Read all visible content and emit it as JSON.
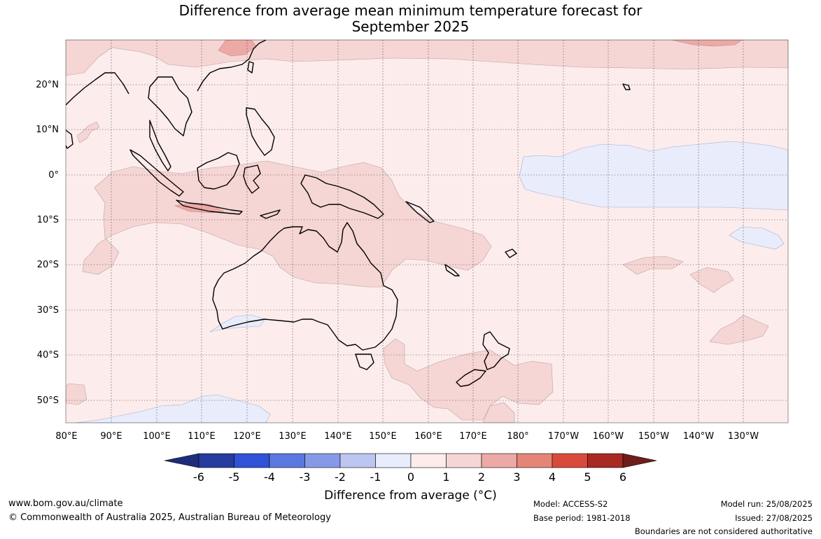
{
  "title": {
    "line1": "Difference from average mean minimum temperature forecast for",
    "line2": "September 2025"
  },
  "map": {
    "lat_labels": [
      "20°N",
      "10°N",
      "0°",
      "10°S",
      "20°S",
      "30°S",
      "40°S",
      "50°S"
    ],
    "lon_labels": [
      "80°E",
      "90°E",
      "100°E",
      "110°E",
      "120°E",
      "130°E",
      "140°E",
      "150°E",
      "160°E",
      "170°E",
      "180°",
      "170°W",
      "160°W",
      "150°W",
      "140°W",
      "130°W"
    ],
    "extent": {
      "lon_min": 80,
      "lon_max": 239,
      "lat_min": -55,
      "lat_max": 30
    },
    "grid": "dotted"
  },
  "colorbar": {
    "tick_labels": [
      "-6",
      "-5",
      "-4",
      "-3",
      "-2",
      "-1",
      "0",
      "1",
      "2",
      "3",
      "4",
      "5",
      "6"
    ],
    "colors": [
      "#263c9e",
      "#2f52d6",
      "#5b78e0",
      "#8699e6",
      "#bcc6f0",
      "#e8ecfb",
      "#fcecec",
      "#f6d5d5",
      "#eca9a5",
      "#e58577",
      "#da4a3c",
      "#a82a22"
    ],
    "under_color": "#1e2d7a",
    "over_color": "#6f1d1a",
    "title": "Difference from average (°C)"
  },
  "footer": {
    "website": "www.bom.gov.au/climate",
    "copyright": "© Commonwealth of Australia 2025, Australian Bureau of Meteorology",
    "model": "Model: ACCESS-S2",
    "base_period": "Base period: 1981-2018",
    "model_run": "Model run: 25/08/2025",
    "issued": "Issued: 27/08/2025",
    "disclaimer": "Boundaries are not considered authoritative"
  }
}
